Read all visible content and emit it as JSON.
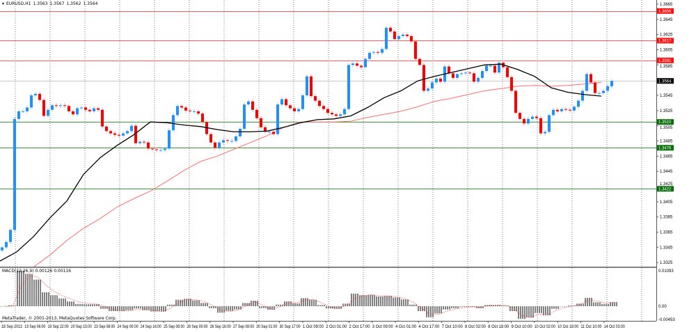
{
  "header": {
    "symbol_dropdown_icon": "triangle-down-icon",
    "symbol": "EURUSD,H1",
    "open": "1.3563",
    "high": "1.3567",
    "low": "1.3562",
    "close": "1.3564"
  },
  "macd_window": {
    "label": "MACD(12,26,9) 0.00126 0.00116",
    "axis_top": "0.01093",
    "axis_zero": "0.00",
    "axis_bottom": "-0.00453"
  },
  "copyright": "MetaTrader, © 2001-2013, MetaQuotes Software Corp.",
  "colors": {
    "bull": "#1e90ff",
    "bear": "#ff0000",
    "ma_fast": "#000000",
    "ma_slow": "#ff6f6f",
    "resistance": "#ff5a5a",
    "support": "#3c9a3c",
    "macd_hist": "#808080",
    "macd_signal": "#ff4040",
    "grid": "#808080"
  },
  "chart_data": [
    {
      "type": "candlestick",
      "title": "EURUSD,H1",
      "ylim": [
        1.3318,
        1.367
      ],
      "grid": "vertical dashed",
      "price_ticks": [
        "1.3665",
        "1.3645",
        "1.3625",
        "1.3605",
        "1.3585",
        "1.3545",
        "1.3525",
        "1.3505",
        "1.3485",
        "1.3465",
        "1.3445",
        "1.3425",
        "1.3405",
        "1.3385",
        "1.3365",
        "1.3345",
        "1.3325"
      ],
      "time_labels": [
        "18 Sep 2013",
        "19 Sep 06:00",
        "19 Sep 22:00",
        "20 Sep 15:00",
        "23 Sep 08:00",
        "24 Sep 00:00",
        "24 Sep 16:00",
        "25 Sep 08:00",
        "26 Sep 00:00",
        "26 Sep 16:00",
        "27 Sep 08:00",
        "30 Sep 01:00",
        "30 Sep 17:00",
        "1 Oct 09:00",
        "2 Oct 01:00",
        "2 Oct 17:00",
        "3 Oct 09:00",
        "4 Oct 01:00",
        "4 Oct 17:00",
        "7 Oct 10:00",
        "8 Oct 02:00",
        "8 Oct 18:00",
        "9 Oct 10:00",
        "10 Oct 02:00",
        "10 Oct 18:00",
        "11 Oct 10:00",
        "14 Oct 03:00"
      ],
      "closes": [
        1.3345,
        1.3352,
        1.3368,
        1.3514,
        1.3524,
        1.3524,
        1.3529,
        1.3545,
        1.3547,
        1.3539,
        1.3518,
        1.3526,
        1.3532,
        1.3531,
        1.3532,
        1.3531,
        1.3524,
        1.352,
        1.3528,
        1.3529,
        1.3526,
        1.3524,
        1.3528,
        1.3526,
        1.3504,
        1.3498,
        1.3495,
        1.3493,
        1.3492,
        1.3495,
        1.3498,
        1.3505,
        1.3482,
        1.3484,
        1.3483,
        1.3475,
        1.3474,
        1.3473,
        1.3473,
        1.3475,
        1.3499,
        1.3519,
        1.3531,
        1.3529,
        1.3525,
        1.3524,
        1.3524,
        1.3521,
        1.351,
        1.3494,
        1.3483,
        1.3476,
        1.3483,
        1.3486,
        1.3485,
        1.3485,
        1.3491,
        1.3501,
        1.3533,
        1.3537,
        1.3526,
        1.3515,
        1.3503,
        1.3497,
        1.3497,
        1.3494,
        1.3533,
        1.354,
        1.3532,
        1.3528,
        1.3524,
        1.3527,
        1.3545,
        1.357,
        1.3544,
        1.3538,
        1.3531,
        1.3527,
        1.3522,
        1.352,
        1.3518,
        1.352,
        1.3527,
        1.3585,
        1.3587,
        1.3584,
        1.3582,
        1.3593,
        1.3601,
        1.3602,
        1.3601,
        1.3606,
        1.3634,
        1.3629,
        1.3619,
        1.3623,
        1.3625,
        1.3623,
        1.3616,
        1.3593,
        1.3585,
        1.3551,
        1.3554,
        1.3562,
        1.3567,
        1.3563,
        1.3583,
        1.3574,
        1.3568,
        1.3573,
        1.3574,
        1.3575,
        1.3574,
        1.3563,
        1.3568,
        1.3577,
        1.3584,
        1.3584,
        1.3575,
        1.3588,
        1.3582,
        1.3569,
        1.3551,
        1.3522,
        1.3514,
        1.3508,
        1.3514,
        1.3517,
        1.3515,
        1.3495,
        1.3497,
        1.3519,
        1.3526,
        1.3524,
        1.3527,
        1.3526,
        1.3525,
        1.353,
        1.3538,
        1.3551,
        1.3573,
        1.3562,
        1.3548,
        1.3548,
        1.3551,
        1.3557,
        1.3564
      ],
      "ma_fast": [
        1.3327,
        1.3339,
        1.3359,
        1.3384,
        1.3406,
        1.3441,
        1.3463,
        1.3479,
        1.3493,
        1.351,
        1.3509,
        1.3506,
        1.3504,
        1.35,
        1.3497,
        1.3497,
        1.3498,
        1.3503,
        1.3509,
        1.3513,
        1.3514,
        1.3518,
        1.3529,
        1.3542,
        1.3551,
        1.3564,
        1.357,
        1.3575,
        1.358,
        1.3585,
        1.3586,
        1.3579,
        1.357,
        1.3555,
        1.3549,
        1.3546,
        1.3544
      ],
      "ma_slow": [
        null,
        null,
        1.3319,
        1.3335,
        1.3354,
        1.337,
        1.3383,
        1.3398,
        1.3409,
        1.3419,
        1.3432,
        1.3446,
        1.3458,
        1.3465,
        1.3474,
        1.3483,
        1.3492,
        1.3503,
        1.351,
        1.351,
        1.351,
        1.3511,
        1.3516,
        1.352,
        1.3524,
        1.353,
        1.3537,
        1.3541,
        1.3546,
        1.3551,
        1.3554,
        1.3557,
        1.3558,
        1.3557,
        1.3558,
        1.356,
        1.3562
      ],
      "horizontal_lines": [
        {
          "price": "1.3656",
          "kind": "resistance"
        },
        {
          "price": "1.3617",
          "kind": "resistance"
        },
        {
          "price": "1.3591",
          "kind": "resistance"
        },
        {
          "price": "1.3564",
          "kind": "current"
        },
        {
          "price": "1.3510",
          "kind": "support"
        },
        {
          "price": "1.3476",
          "kind": "support"
        },
        {
          "price": "1.3422",
          "kind": "support"
        }
      ]
    },
    {
      "type": "bar",
      "title": "MACD(12,26,9)",
      "ylim": [
        -0.00453,
        0.01093
      ],
      "histogram": [
        0,
        0.0003,
        0.011,
        0.01,
        0.0082,
        0.0043,
        0.0034,
        0.0024,
        0.0015,
        0.0007,
        0.0006,
        0.0006,
        -0.0008,
        -0.0015,
        -0.0015,
        -0.0012,
        -0.0007,
        -0.0012,
        -0.0016,
        -0.0016,
        0.0005,
        0.002,
        0.0023,
        0.0018,
        0.001,
        -0.0006,
        -0.002,
        -0.0014,
        -0.001,
        0.001,
        0.0017,
        -0.0006,
        -0.0011,
        0.0005,
        0.0015,
        0.0009,
        0.0025,
        0.002,
        0.0004,
        -0.0007,
        -0.0008,
        0.0008,
        0.0039,
        0.0034,
        0.0035,
        0.003,
        0.0032,
        0.0027,
        0.0021,
        0.0005,
        -0.0015,
        -0.0034,
        -0.0022,
        -0.001,
        -0.0006,
        -0.0002,
        -0.0002,
        -0.0006,
        0.0004,
        0.0004,
        0.0002,
        -0.0015,
        -0.0039,
        -0.0035,
        -0.0021,
        -0.0028,
        -0.0008,
        -0.0001,
        0.0002,
        0.0008,
        0.0026,
        0.0012,
        0.0007,
        0.00126
      ],
      "signal": [
        0,
        0,
        0.006,
        0.0095,
        0.009,
        0.0065,
        0.0045,
        0.0032,
        0.0022,
        0.0013,
        0.0009,
        0.0007,
        0,
        -0.001,
        -0.0014,
        -0.0014,
        -0.001,
        -0.001,
        -0.0014,
        -0.0016,
        -0.0005,
        0.0012,
        0.0021,
        0.002,
        0.0014,
        0.0002,
        -0.0013,
        -0.0016,
        -0.0012,
        0.0002,
        0.0014,
        0.0003,
        -0.0008,
        -0.0002,
        0.001,
        0.0011,
        0.0019,
        0.0021,
        0.001,
        -0.0002,
        -0.0007,
        0.0002,
        0.0025,
        0.0033,
        0.0035,
        0.0032,
        0.0032,
        0.0029,
        0.0024,
        0.0012,
        -0.0006,
        -0.0026,
        -0.0025,
        -0.0015,
        -0.0009,
        -0.0004,
        -0.0002,
        -0.0004,
        0.0001,
        0.0003,
        0.0003,
        -0.0008,
        -0.0029,
        -0.0034,
        -0.0025,
        -0.0027,
        -0.0014,
        -0.0004,
        0,
        0.0006,
        0.0019,
        0.0016,
        0.001,
        0.00116
      ]
    }
  ]
}
